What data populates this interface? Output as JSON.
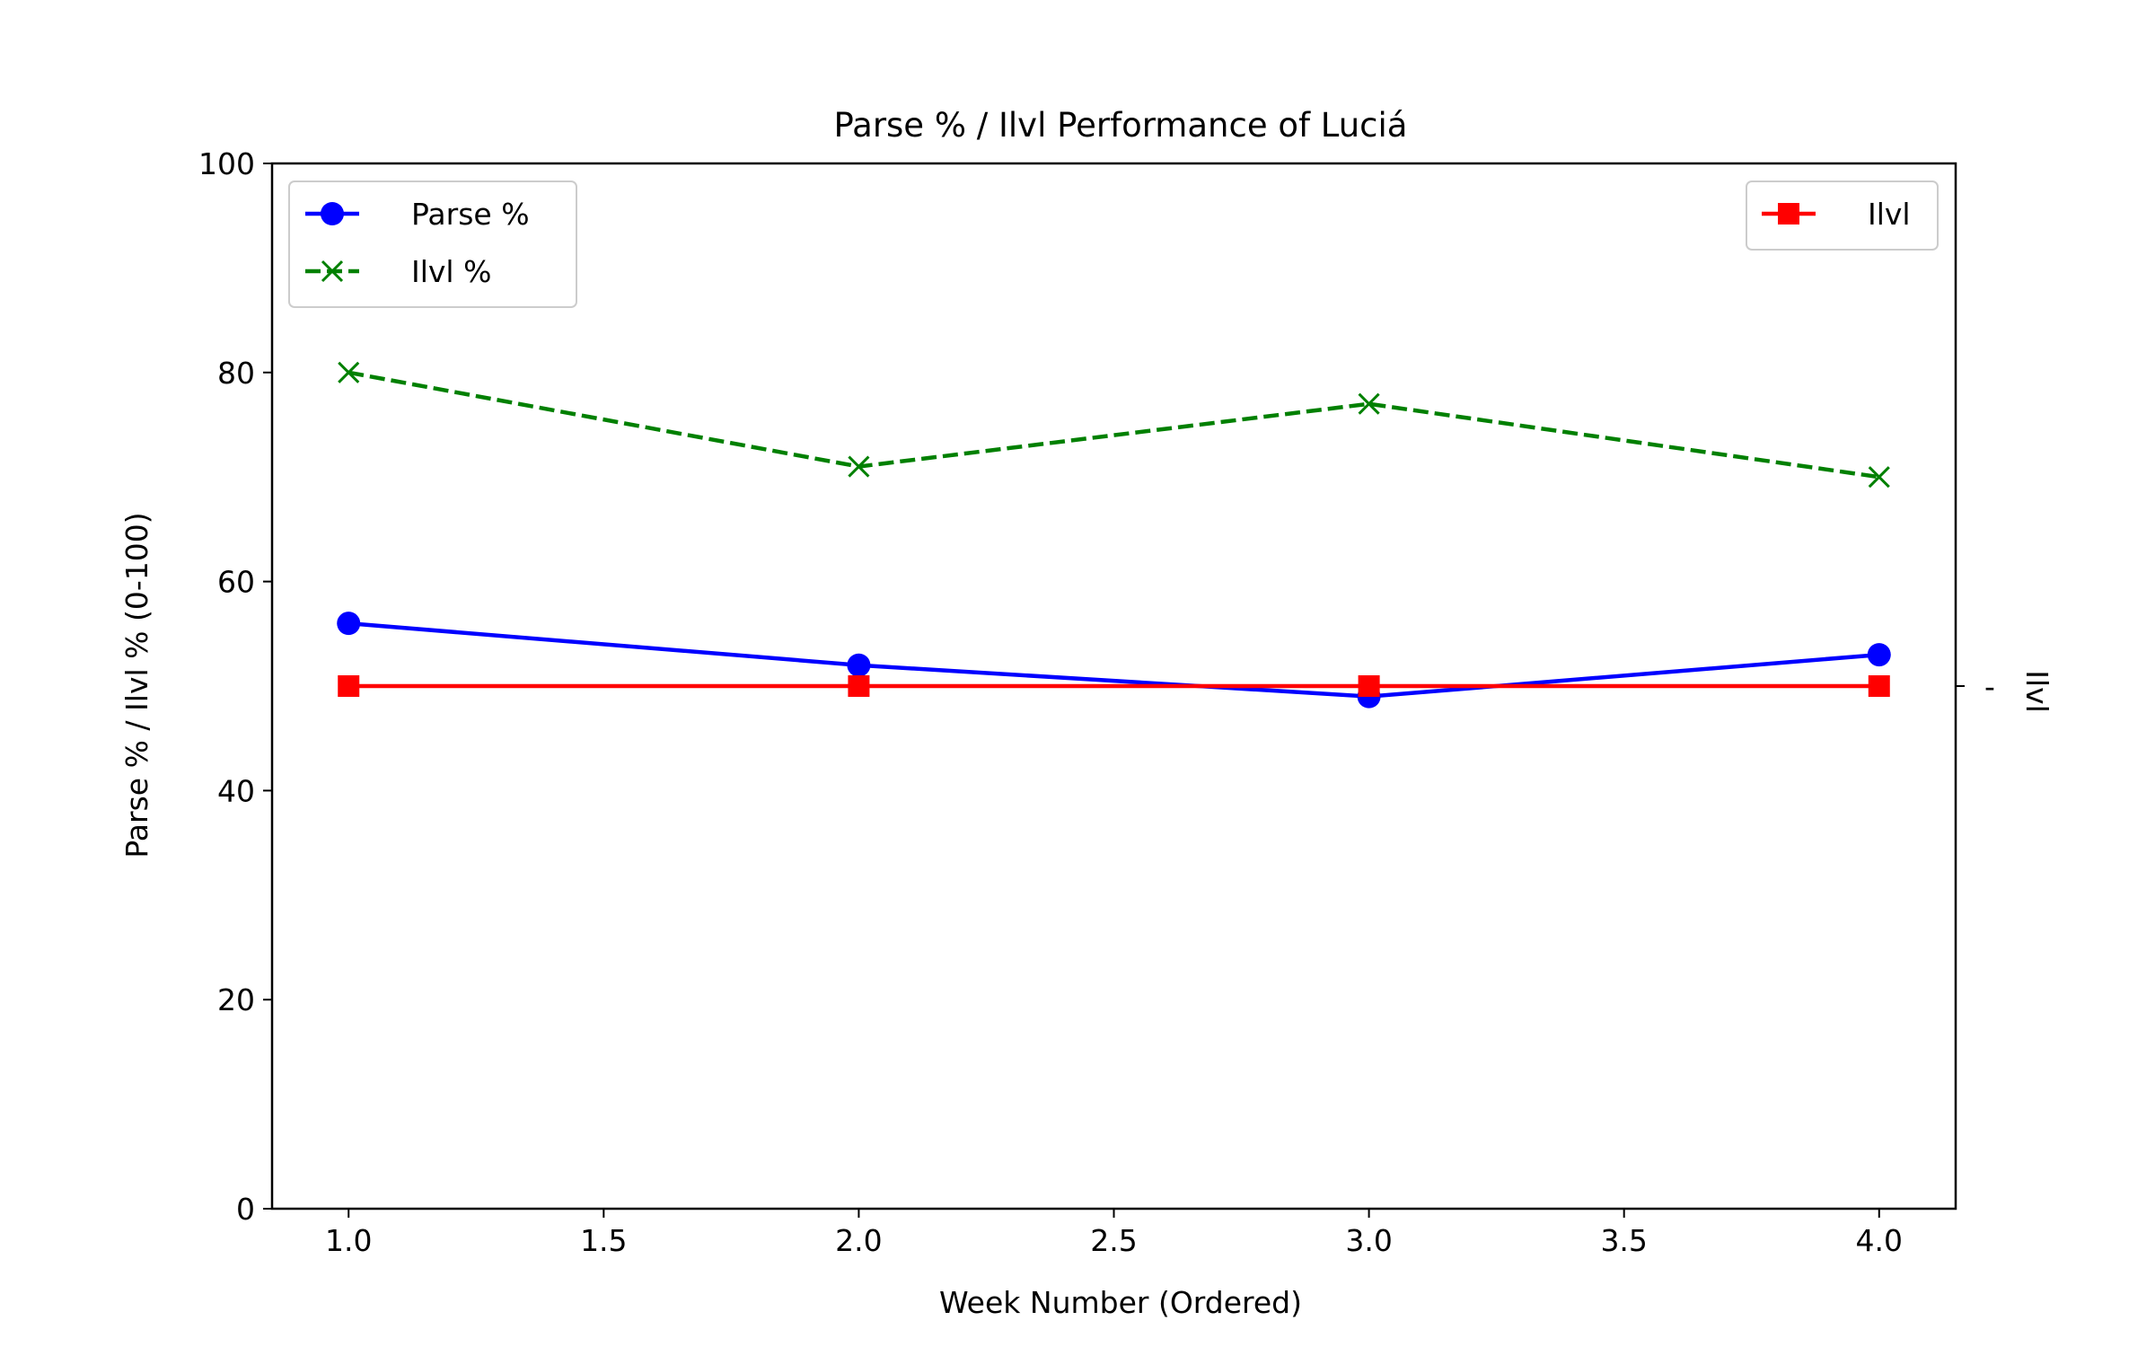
{
  "chart_data": {
    "type": "line",
    "title": "Parse % / Ilvl Performance of Luciá",
    "xlabel": "Week Number (Ordered)",
    "ylabel": "Parse % / Ilvl % (0-100)",
    "y2label": "Ilvl",
    "y2_tick_label": "-",
    "xlim": [
      0.85,
      4.15
    ],
    "ylim": [
      0,
      100
    ],
    "x_ticks": [
      1.0,
      1.5,
      2.0,
      2.5,
      3.0,
      3.5,
      4.0
    ],
    "x_tick_labels": [
      "1.0",
      "1.5",
      "2.0",
      "2.5",
      "3.0",
      "3.5",
      "4.0"
    ],
    "y_ticks": [
      0,
      20,
      40,
      60,
      80,
      100
    ],
    "y_tick_labels": [
      "0",
      "20",
      "40",
      "60",
      "80",
      "100"
    ],
    "x": [
      1,
      2,
      3,
      4
    ],
    "series": [
      {
        "name": "Parse %",
        "values": [
          56,
          52,
          49,
          53
        ],
        "color": "#0000ff",
        "marker": "circle",
        "line_style": "solid",
        "axis": "left"
      },
      {
        "name": "Ilvl %",
        "values": [
          80,
          71,
          77,
          70
        ],
        "color": "#008000",
        "marker": "x",
        "line_style": "dashed",
        "axis": "left"
      },
      {
        "name": "Ilvl",
        "values": [
          50,
          50,
          50,
          50
        ],
        "color": "#ff0000",
        "marker": "square",
        "line_style": "solid",
        "axis": "right"
      }
    ],
    "legends": [
      {
        "placement": "top-left",
        "entries": [
          "Parse %",
          "Ilvl %"
        ]
      },
      {
        "placement": "top-right",
        "entries": [
          "Ilvl"
        ]
      }
    ],
    "ylabel_color": "#0000ff",
    "y2label_color": "#ff0000",
    "grid": false
  }
}
